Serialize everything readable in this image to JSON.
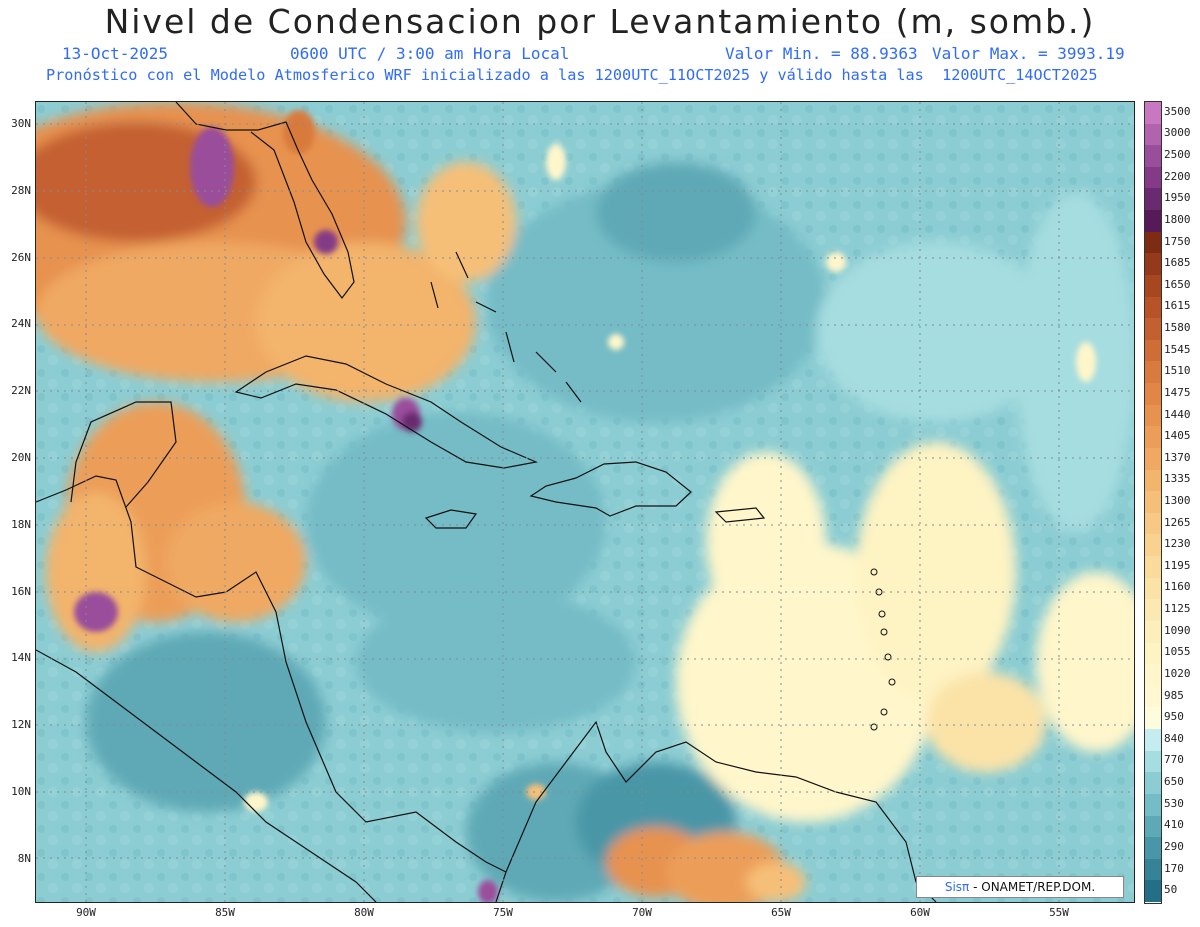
{
  "title": "Nivel de Condensacion por Levantamiento (m, somb.)",
  "date": "13-Oct-2025",
  "time": "0600 UTC / 3:00 am Hora Local",
  "min_label": "Valor Min. = 88.9363",
  "max_label": "Valor Max. = 3993.19",
  "forecast_line": "Pronóstico con el Modelo Atmosferico WRF inicializado a las 1200UTC_11OCT2025 y válido hasta las  1200UTC_14OCT2025",
  "credit_brand": "Sisπ",
  "credit_org": "- ONAMET/REP.DOM.",
  "lat_ticks": [
    "30N",
    "28N",
    "26N",
    "24N",
    "22N",
    "20N",
    "18N",
    "16N",
    "14N",
    "12N",
    "10N",
    "8N"
  ],
  "lon_ticks": [
    "90W",
    "85W",
    "80W",
    "75W",
    "70W",
    "65W",
    "60W",
    "55W"
  ],
  "colorbar": {
    "labels": [
      "3500",
      "3000",
      "2500",
      "2200",
      "1950",
      "1800",
      "1750",
      "1685",
      "1650",
      "1615",
      "1580",
      "1545",
      "1510",
      "1475",
      "1440",
      "1405",
      "1370",
      "1335",
      "1300",
      "1265",
      "1230",
      "1195",
      "1160",
      "1125",
      "1090",
      "1055",
      "1020",
      "985",
      "950",
      "840",
      "770",
      "650",
      "530",
      "410",
      "290",
      "170",
      "50"
    ],
    "colors": [
      "#c977c0",
      "#b263b0",
      "#9a4d9b",
      "#843a86",
      "#6a2a70",
      "#551a57",
      "#7e2b14",
      "#94391a",
      "#a7461f",
      "#b75327",
      "#c46030",
      "#cf6d37",
      "#d97a3e",
      "#e18646",
      "#e7924f",
      "#ec9e58",
      "#f0a962",
      "#f3b46c",
      "#f6bf78",
      "#f8c984",
      "#f9d290",
      "#fadb9c",
      "#fbe3a7",
      "#fce9b2",
      "#fdefbb",
      "#fef3c3",
      "#fff6cb",
      "#fff8d3",
      "#fffbdd",
      "#c5ecef",
      "#a6dde0",
      "#8ccdd3",
      "#74bcc6",
      "#5ea9b6",
      "#4896a7",
      "#358397",
      "#226f87"
    ]
  }
}
